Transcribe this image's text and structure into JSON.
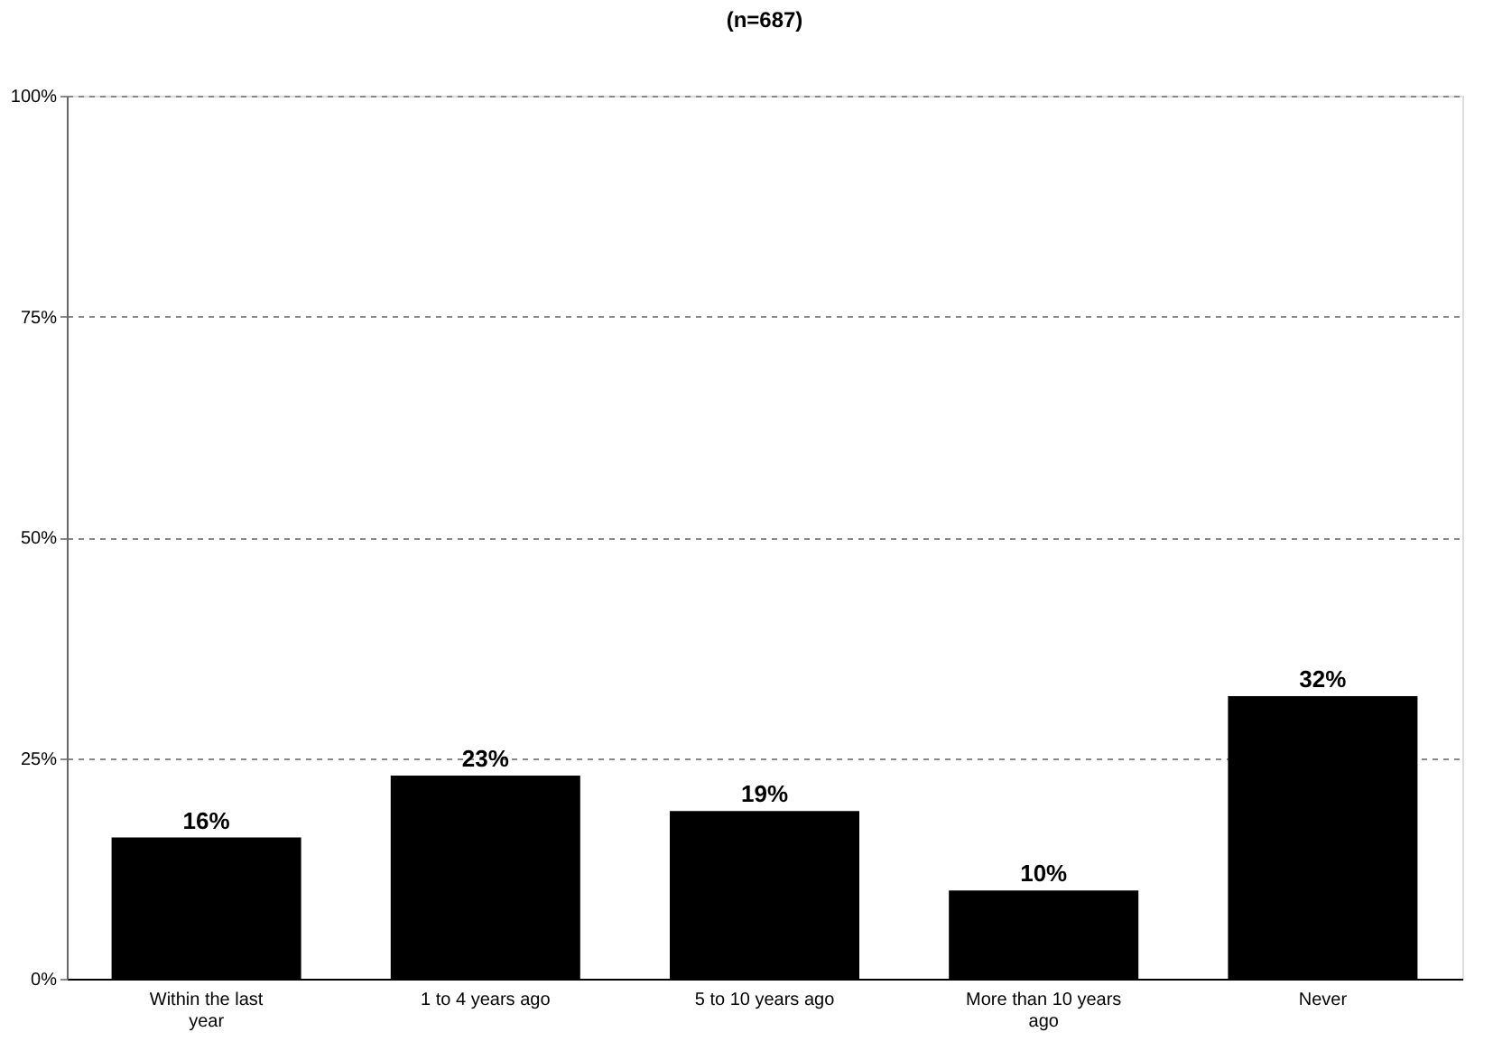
{
  "chart_data": {
    "type": "bar",
    "title": "(n=687)",
    "categories": [
      "Within the last year",
      "1 to 4 years ago",
      "5 to 10 years ago",
      "More than 10 years ago",
      "Never"
    ],
    "values": [
      16,
      23,
      19,
      10,
      32
    ],
    "value_labels": [
      "16%",
      "23%",
      "19%",
      "10%",
      "32%"
    ],
    "color": "#000000",
    "ylim": [
      0,
      100
    ],
    "yticks": [
      {
        "value": 0,
        "label": "0%"
      },
      {
        "value": 25,
        "label": "25%"
      },
      {
        "value": 50,
        "label": "50%"
      },
      {
        "value": 75,
        "label": "75%"
      },
      {
        "value": 100,
        "label": "100%"
      }
    ],
    "grid": "y"
  }
}
